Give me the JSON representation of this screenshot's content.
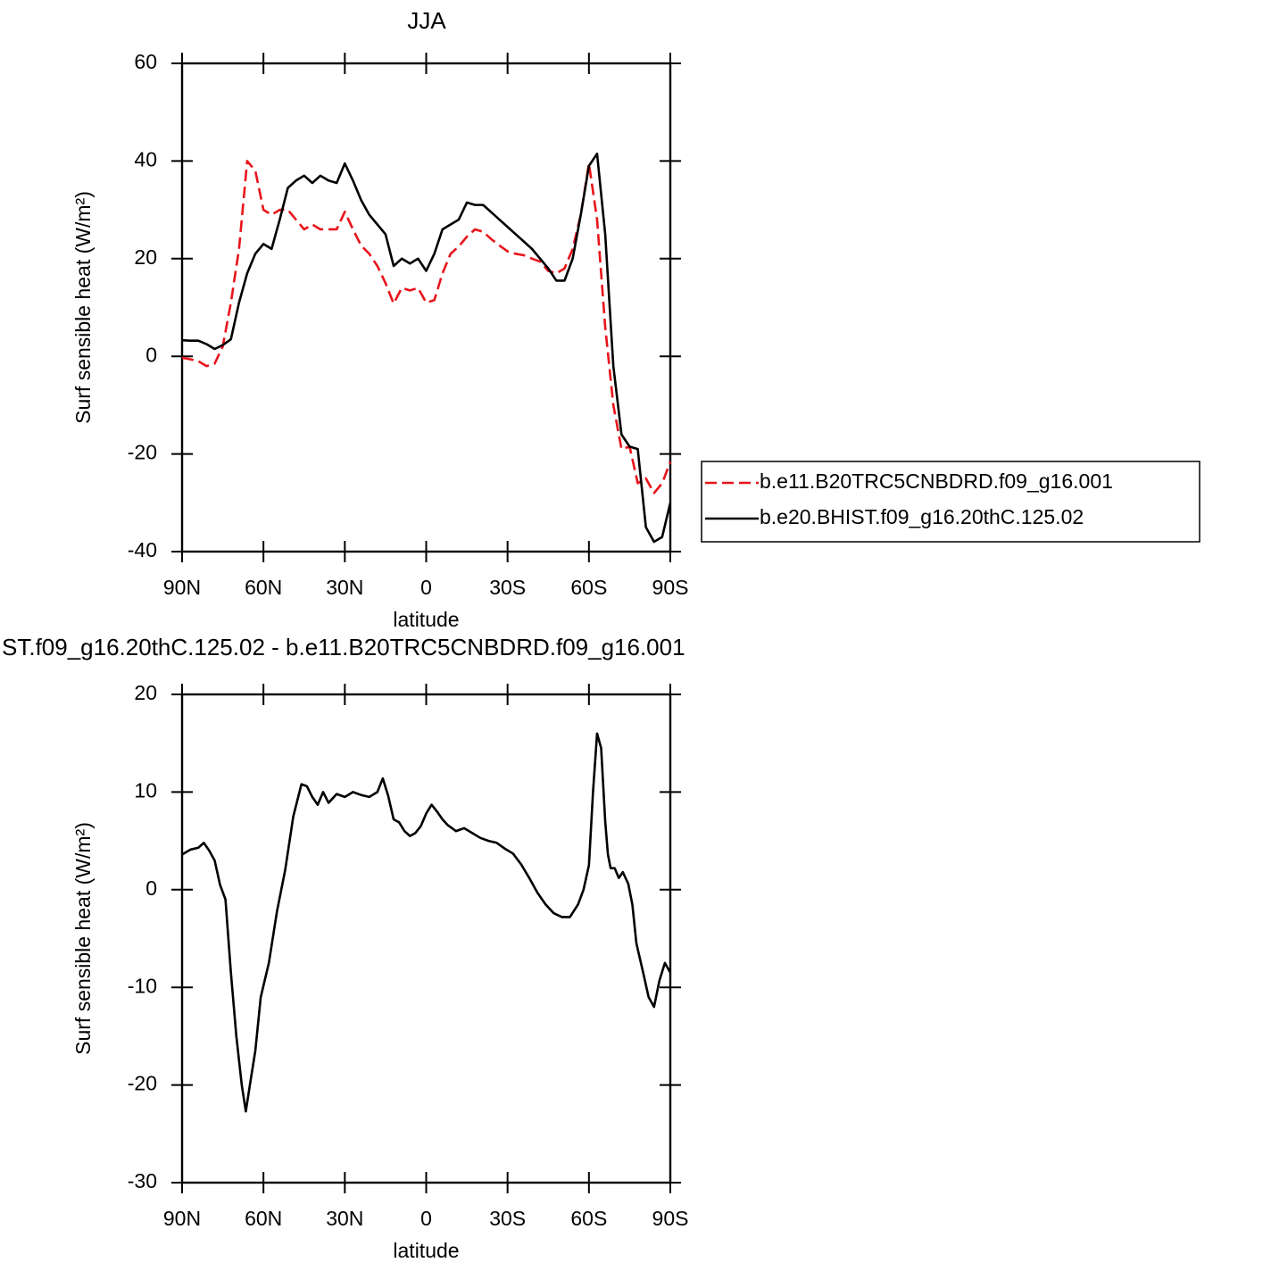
{
  "chart_data": [
    {
      "type": "line",
      "title": "JJA",
      "xlabel": "latitude",
      "ylabel": "Surf sensible heat (W/m²)",
      "x": [
        90,
        87,
        84,
        81,
        78,
        75,
        72,
        69,
        66,
        63,
        60,
        57,
        54,
        51,
        48,
        45,
        42,
        39,
        36,
        33,
        30,
        27,
        24,
        21,
        18,
        15,
        12,
        9,
        6,
        3,
        0,
        -3,
        -6,
        -9,
        -12,
        -15,
        -18,
        -21,
        -24,
        -27,
        -30,
        -33,
        -36,
        -39,
        -42,
        -45,
        -48,
        -51,
        -54,
        -57,
        -60,
        -63,
        -66,
        -69,
        -72,
        -75,
        -78,
        -81,
        -84,
        -87,
        -90
      ],
      "series": [
        {
          "name": "b.e11.B20TRC5CNBDRD.f09_g16.001",
          "color": "#e8141b",
          "linestyle": "dashed",
          "values": [
            -0.3,
            -0.6,
            -1,
            -2,
            -1.5,
            2,
            11,
            22,
            40,
            38,
            30,
            29,
            30,
            30,
            28,
            26,
            27,
            26,
            26,
            26,
            29.6,
            26,
            22.7,
            21,
            18.5,
            15,
            10.8,
            14,
            13.5,
            14,
            11,
            11.5,
            17,
            21,
            22.5,
            24.5,
            26,
            25.5,
            24,
            22.7,
            21.5,
            21,
            20.7,
            20,
            19.4,
            17.5,
            17,
            18,
            22,
            29,
            39.5,
            28,
            6,
            -10,
            -19,
            -18.5,
            -26,
            -25,
            -28,
            -26,
            -21.6
          ]
        },
        {
          "name": "b.e20.BHIST.f09_g16.20thC.125.02",
          "color": "#000000",
          "linestyle": "solid",
          "values": [
            3.3,
            3.2,
            3.2,
            2.5,
            1.5,
            2.3,
            3.5,
            11,
            17,
            21,
            23,
            22,
            28,
            34.5,
            36,
            37,
            35.5,
            37,
            36,
            35.5,
            39.5,
            36,
            32,
            29,
            27,
            25,
            18.5,
            20,
            19,
            20,
            17.5,
            21,
            26,
            27,
            28,
            31.5,
            31,
            31,
            29.5,
            28,
            26.5,
            25,
            23.5,
            22,
            20,
            18,
            15.5,
            15.5,
            20,
            29,
            39,
            41.5,
            25,
            -2,
            -16,
            -18.5,
            -19,
            -35,
            -38,
            -37,
            -30
          ]
        }
      ],
      "xlim": [
        90,
        -90
      ],
      "xticks": [
        {
          "value": 90,
          "label": "90N"
        },
        {
          "value": 60,
          "label": "60N"
        },
        {
          "value": 30,
          "label": "30N"
        },
        0,
        {
          "value": -30,
          "label": "30S"
        },
        {
          "value": -60,
          "label": "60S"
        },
        {
          "value": -90,
          "label": "90S"
        }
      ],
      "ylim": [
        -40,
        60
      ],
      "yticks": [
        -40,
        -20,
        0,
        20,
        40,
        60
      ],
      "legend": "right"
    },
    {
      "type": "line",
      "title": "ST.f09_g16.20thC.125.02 - b.e11.B20TRC5CNBDRD.f09_g16.001",
      "xlabel": "latitude",
      "ylabel": "Surf sensible heat (W/m²)",
      "x": [
        90,
        87,
        84,
        82,
        80,
        78,
        76,
        74,
        72,
        70,
        68,
        66.5,
        65,
        63,
        61,
        58,
        55,
        52,
        49,
        46,
        44,
        42,
        40,
        38,
        36,
        33,
        30,
        27,
        24,
        21,
        18,
        16,
        14,
        12,
        10,
        8,
        6,
        4,
        2,
        0,
        -2,
        -4,
        -6,
        -8,
        -11,
        -14,
        -17,
        -20,
        -23,
        -26,
        -29,
        -32,
        -35,
        -38,
        -41,
        -44,
        -47,
        -50,
        -53,
        -56,
        -58,
        -60,
        -61.5,
        -63,
        -64.5,
        -66,
        -67,
        -68,
        -69.5,
        -71,
        -72.5,
        -74.5,
        -76,
        -77.5,
        -80,
        -82,
        -84,
        -86,
        -88,
        -90
      ],
      "values": [
        3.6,
        4.1,
        4.3,
        4.8,
        4,
        3,
        0.5,
        -1,
        -8.5,
        -15,
        -20,
        -22.7,
        -20,
        -16.5,
        -11,
        -7.5,
        -2.2,
        2,
        7.5,
        10.8,
        10.6,
        9.5,
        8.7,
        10,
        8.9,
        9.8,
        9.5,
        10,
        9.7,
        9.5,
        10,
        11.4,
        9.6,
        7.2,
        6.9,
        6,
        5.5,
        5.8,
        6.5,
        7.8,
        8.7,
        8,
        7.2,
        6.6,
        6,
        6.3,
        5.8,
        5.3,
        5,
        4.8,
        4.2,
        3.7,
        2.6,
        1.2,
        -0.3,
        -1.5,
        -2.4,
        -2.8,
        -2.8,
        -1.5,
        0,
        2.5,
        10,
        16,
        14.5,
        7,
        3.6,
        2.2,
        2.2,
        1.2,
        1.8,
        0.6,
        -1.5,
        -5.5,
        -8.5,
        -11,
        -12,
        -9.3,
        -7.5,
        -8.5
      ],
      "color": "#000000",
      "linestyle": "solid",
      "xlim": [
        90,
        -90
      ],
      "xticks": [
        {
          "value": 90,
          "label": "90N"
        },
        {
          "value": 60,
          "label": "60N"
        },
        {
          "value": 30,
          "label": "30N"
        },
        0,
        {
          "value": -30,
          "label": "30S"
        },
        {
          "value": -60,
          "label": "60S"
        },
        {
          "value": -90,
          "label": "90S"
        }
      ],
      "ylim": [
        -30,
        20
      ],
      "yticks": [
        -30,
        -20,
        -10,
        0,
        10,
        20
      ]
    }
  ]
}
